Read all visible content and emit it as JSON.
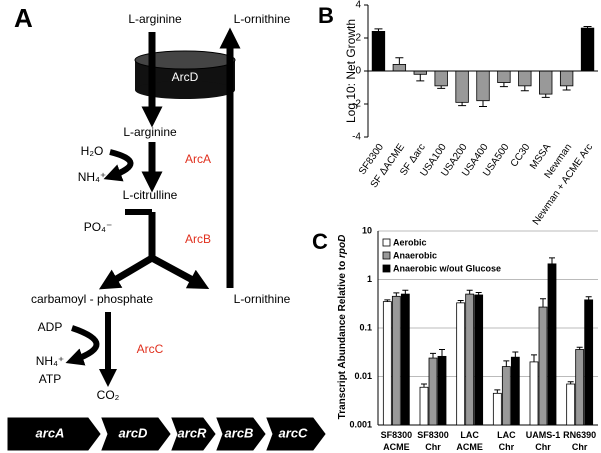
{
  "panel_labels": [
    "A",
    "B",
    "C"
  ],
  "diagram": {
    "top_left": "L-arginine",
    "top_right": "L-ornithine",
    "transporter": "ArcD",
    "arginine": "L-arginine",
    "water": "H₂O",
    "enzyme_a": "ArcA",
    "ammonium_a": "NH₄⁺",
    "citrulline": "L-citrulline",
    "phosphate": "PO₄⁻",
    "enzyme_b": "ArcB",
    "carbamoyl": "carbamoyl - phosphate",
    "ornithine": "L-ornithine",
    "adp": "ADP",
    "enzyme_c": "ArcC",
    "ammonium_c": "NH₄⁺",
    "atp": "ATP",
    "co2": "CO₂",
    "genes": [
      "arcA",
      "arcD",
      "arcR",
      "arcB",
      "arcC"
    ]
  },
  "chart_data": [
    {
      "type": "bar",
      "ylabel": "Log 10: Net Growth",
      "categories": [
        "SF8300",
        "SF ΔACME",
        "SF Δarc",
        "USA100",
        "USA200",
        "USA400",
        "USA500",
        "CC30",
        "MSSA",
        "Newman",
        "Newman + ACME Arc"
      ],
      "values": [
        2.4,
        0.4,
        -0.2,
        -0.9,
        -1.9,
        -1.8,
        -0.7,
        -0.9,
        -1.4,
        -0.9,
        2.6
      ],
      "errors": [
        0.15,
        0.4,
        0.4,
        0.15,
        0.2,
        0.35,
        0.25,
        0.3,
        0.2,
        0.25,
        0.1
      ],
      "colors": [
        "#000000",
        "#999999",
        "#999999",
        "#999999",
        "#999999",
        "#999999",
        "#999999",
        "#999999",
        "#999999",
        "#999999",
        "#000000"
      ],
      "ylim": [
        -4,
        4
      ],
      "yticks": [
        -4,
        -2,
        0,
        2,
        4
      ],
      "grid": false
    },
    {
      "type": "grouped-bar",
      "ylabel": [
        "Transcript Abundance Relative to ",
        "rpoD"
      ],
      "categories": [
        [
          "SF8300",
          "ACME"
        ],
        [
          "SF8300",
          "Chr"
        ],
        [
          "LAC",
          "ACME"
        ],
        [
          "LAC",
          "Chr"
        ],
        [
          "UAMS-1",
          "Chr"
        ],
        [
          "RN6390",
          "Chr"
        ]
      ],
      "series": [
        {
          "name": "Aerobic",
          "color": "#ffffff",
          "values": [
            0.35,
            0.006,
            0.33,
            0.0045,
            0.02,
            0.007
          ],
          "errors": [
            0.03,
            0.001,
            0.04,
            0.0008,
            0.008,
            0.0008
          ]
        },
        {
          "name": "Anaerobic",
          "color": "#999999",
          "values": [
            0.45,
            0.024,
            0.5,
            0.016,
            0.27,
            0.036
          ],
          "errors": [
            0.08,
            0.006,
            0.1,
            0.005,
            0.13,
            0.004
          ]
        },
        {
          "name": "Anaerobic w/out Glucose",
          "color": "#000000",
          "values": [
            0.5,
            0.026,
            0.48,
            0.025,
            2.1,
            0.38
          ],
          "errors": [
            0.1,
            0.01,
            0.06,
            0.007,
            0.7,
            0.06
          ]
        }
      ],
      "ylim": [
        0.001,
        10
      ],
      "yticks": [
        0.001,
        0.01,
        0.1,
        1,
        10
      ],
      "log_scale": true,
      "grid": true,
      "legend_position": "upper left"
    }
  ]
}
